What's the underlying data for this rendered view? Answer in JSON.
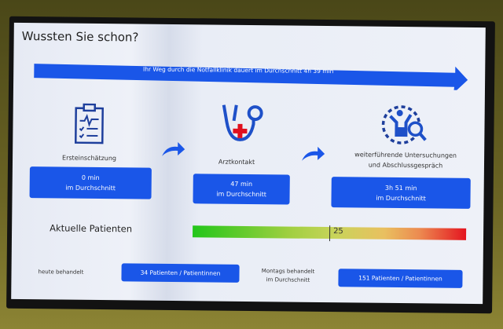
{
  "title": "Wussten Sie schon?",
  "banner": "Ihr Weg durch die Notfallklinik dauert im Durchschnitt 4h 39 min",
  "steps": [
    {
      "icon": "clipboard-icon",
      "label": "Ersteinschätzung",
      "time": "0 min",
      "sub": "im Durchschnitt"
    },
    {
      "icon": "stethoscope-icon",
      "label": "Arztkontakt",
      "time": "47 min",
      "sub": "im Durchschnitt"
    },
    {
      "icon": "examination-icon",
      "label_line1": "weiterführende Untersuchungen",
      "label_line2": "und Abschlussgespräch",
      "time": "3h 51 min",
      "sub": "im Durchschnitt"
    }
  ],
  "gauge": {
    "label": "Aktuelle Patienten",
    "value": "25",
    "level": 0.5
  },
  "stats": {
    "today_label": "heute behandelt",
    "today_value": "34 Patienten / Patientinnen",
    "monday_label_line1": "Montags behandelt",
    "monday_label_line2": "im Durchschnitt",
    "monday_value": "151 Patienten / Patientinnen"
  },
  "colors": {
    "accent": "#1a56e8",
    "gauge_low": "#22c61a",
    "gauge_high": "#e41520",
    "cross": "#e0101e"
  }
}
